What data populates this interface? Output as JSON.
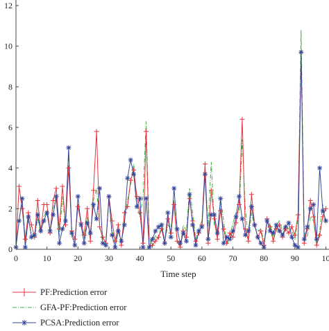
{
  "chart_data": {
    "type": "line",
    "title": "",
    "xlabel": "Time step",
    "ylabel": "",
    "xlim": [
      0,
      101
    ],
    "ylim": [
      0,
      12
    ],
    "x_ticks": [
      "0",
      "10",
      "20",
      "30",
      "40",
      "50",
      "60",
      "70",
      "80",
      "90",
      "10"
    ],
    "y_ticks": [
      "0",
      "2",
      "4",
      "6",
      "8",
      "10",
      "12"
    ],
    "grid": false,
    "legend_position": "bottom",
    "series": [
      {
        "name": "PF:Prediction error",
        "color": "#e8303a",
        "style": "solid",
        "marker": "plus",
        "values": [
          0.1,
          3.1,
          2.0,
          0.5,
          1.8,
          1.2,
          0.6,
          2.4,
          0.9,
          2.2,
          2.2,
          0.8,
          2.4,
          3.0,
          1.0,
          3.1,
          1.2,
          4.0,
          0.9,
          0.5,
          2.1,
          1.3,
          0.7,
          2.0,
          0.4,
          2.9,
          5.8,
          1.1,
          0.6,
          0.3,
          2.6,
          1.4,
          0.4,
          1.2,
          0.2,
          1.8,
          2.1,
          3.4,
          3.9,
          2.6,
          1.8,
          0.3,
          5.8,
          0.1,
          0.2,
          0.4,
          0.6,
          1.0,
          0.3,
          1.5,
          0.8,
          2.2,
          0.4,
          0.1,
          0.9,
          0.6,
          2.5,
          1.4,
          0.4,
          0.8,
          1.2,
          4.2,
          0.3,
          2.9,
          1.5,
          0.5,
          1.9,
          1.0,
          0.3,
          0.8,
          0.6,
          1.3,
          2.2,
          6.4,
          1.0,
          0.4,
          2.7,
          1.2,
          0.6,
          0.9,
          0.2,
          1.5,
          1.1,
          0.4,
          1.0,
          1.2,
          0.6,
          1.0,
          0.8,
          1.1,
          0.7,
          1.7,
          9.7,
          0.3,
          1.0,
          2.4,
          1.6,
          0.2,
          0.7,
          1.6,
          2.0
        ]
      },
      {
        "name": "GFA-PF:Prediction error",
        "color": "#3fb03f",
        "style": "dashdot",
        "marker": "none",
        "values": [
          0.1,
          1.4,
          2.4,
          0.6,
          1.4,
          0.8,
          0.6,
          1.5,
          0.8,
          1.6,
          1.9,
          1.0,
          2.0,
          2.6,
          0.6,
          2.6,
          1.1,
          4.8,
          0.6,
          0.3,
          2.2,
          1.4,
          0.5,
          1.6,
          0.5,
          2.4,
          3.0,
          1.2,
          0.3,
          0.4,
          2.4,
          1.0,
          0.3,
          1.0,
          0.3,
          1.4,
          2.4,
          3.2,
          4.2,
          2.2,
          1.6,
          2.6,
          6.3,
          0.6,
          0.1,
          0.7,
          0.5,
          1.3,
          0.4,
          1.2,
          1.0,
          2.4,
          0.5,
          0.1,
          1.2,
          0.9,
          3.0,
          1.8,
          0.5,
          1.0,
          1.4,
          3.9,
          1.1,
          4.3,
          1.2,
          0.7,
          2.5,
          1.4,
          0.2,
          0.6,
          1.3,
          1.8,
          1.8,
          5.4,
          2.0,
          0.4,
          1.8,
          1.1,
          0.9,
          1.0,
          0.4,
          1.0,
          1.3,
          0.5,
          1.2,
          1.4,
          0.9,
          1.2,
          1.0,
          0.9,
          0.5,
          1.5,
          10.8,
          0.8,
          0.6,
          1.6,
          1.4,
          0.3,
          0.9,
          2.2,
          1.2
        ]
      },
      {
        "name": "PCSA:Prediction error",
        "color": "#34469a",
        "style": "solid",
        "marker": "star",
        "values": [
          0.1,
          1.4,
          2.5,
          0.1,
          1.6,
          0.6,
          0.7,
          1.7,
          0.9,
          1.4,
          1.8,
          0.9,
          1.7,
          2.6,
          0.3,
          1.0,
          1.4,
          5.0,
          0.8,
          0.2,
          2.6,
          1.2,
          0.3,
          1.3,
          0.8,
          2.2,
          1.5,
          3.0,
          0.3,
          0.2,
          2.6,
          0.7,
          0.1,
          0.9,
          0.4,
          1.2,
          3.5,
          4.4,
          3.7,
          2.1,
          2.5,
          0.1,
          2.5,
          0.1,
          0.5,
          0.9,
          1.1,
          1.2,
          0.3,
          1.8,
          0.6,
          3.0,
          1.0,
          0.3,
          0.8,
          0.4,
          2.7,
          1.2,
          0.2,
          0.9,
          1.1,
          3.7,
          0.5,
          1.7,
          1.7,
          0.8,
          2.5,
          0.3,
          0.6,
          0.5,
          0.9,
          1.6,
          2.6,
          1.5,
          0.7,
          0.9,
          2.1,
          1.2,
          0.6,
          0.3,
          0.1,
          1.4,
          0.9,
          0.8,
          1.2,
          0.9,
          0.7,
          1.1,
          1.3,
          0.6,
          0.2,
          0.1,
          9.7,
          0.5,
          1.1,
          2.0,
          2.2,
          0.5,
          4.0,
          1.9,
          1.4
        ]
      }
    ]
  }
}
